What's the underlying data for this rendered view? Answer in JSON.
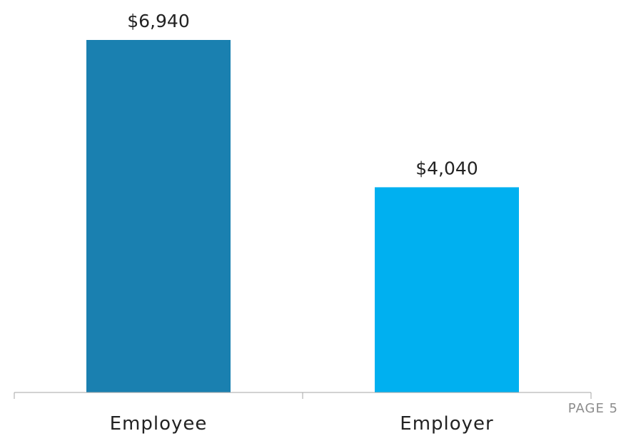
{
  "chart_data": {
    "type": "bar",
    "categories": [
      "Employee",
      "Employer"
    ],
    "values": [
      6940,
      4040
    ],
    "data_labels": [
      "$6,940",
      "$4,040"
    ],
    "colors": [
      "#1a80b0",
      "#00b0f0"
    ],
    "ylim": [
      0,
      6940
    ],
    "grid": false,
    "title": "",
    "xlabel": "",
    "ylabel": ""
  },
  "page_label": "PAGE 5",
  "style": {
    "axis_color": "#a6a6a6"
  }
}
